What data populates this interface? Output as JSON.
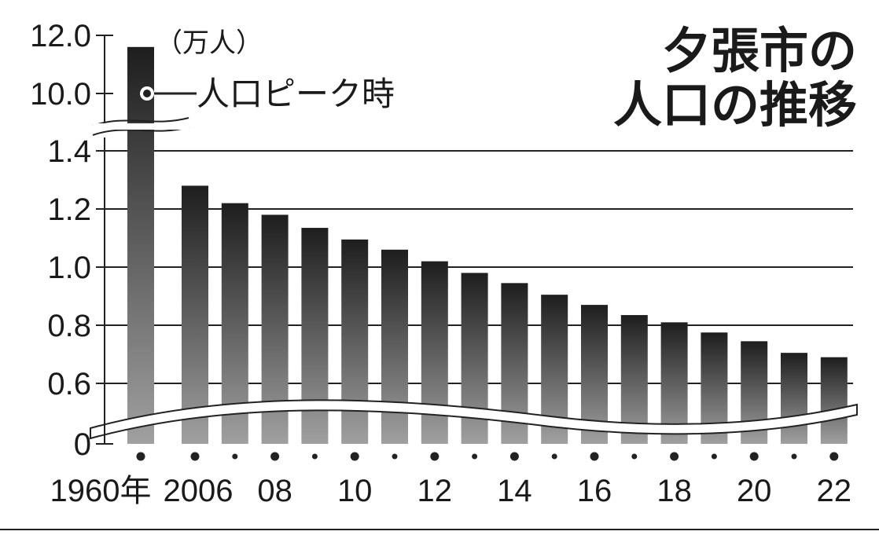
{
  "chart_data": {
    "type": "bar",
    "title_line1": "夕張市の",
    "title_line2": "人口の推移",
    "unit": "（万人）",
    "annotation": "人口ピーク時",
    "categories": [
      "1960",
      "2006",
      "2007",
      "2008",
      "2009",
      "2010",
      "2011",
      "2012",
      "2013",
      "2014",
      "2015",
      "2016",
      "2017",
      "2018",
      "2019",
      "2020",
      "2021",
      "2022"
    ],
    "values": [
      11.6,
      1.28,
      1.22,
      1.18,
      1.135,
      1.095,
      1.06,
      1.02,
      0.98,
      0.945,
      0.905,
      0.87,
      0.835,
      0.81,
      0.775,
      0.745,
      0.705,
      0.69
    ],
    "x_tick_labels": [
      "1960年",
      "2006",
      "08",
      "10",
      "12",
      "14",
      "16",
      "18",
      "20",
      "22"
    ],
    "y_tick_labels": [
      "12.0",
      "10.0",
      "1.4",
      "1.2",
      "1.0",
      "0.8",
      "0.6",
      "0"
    ],
    "ylim_upper": [
      10.0,
      12.0
    ],
    "ylim_lower": [
      0.6,
      1.4
    ],
    "axis_break": true,
    "grid": true
  }
}
